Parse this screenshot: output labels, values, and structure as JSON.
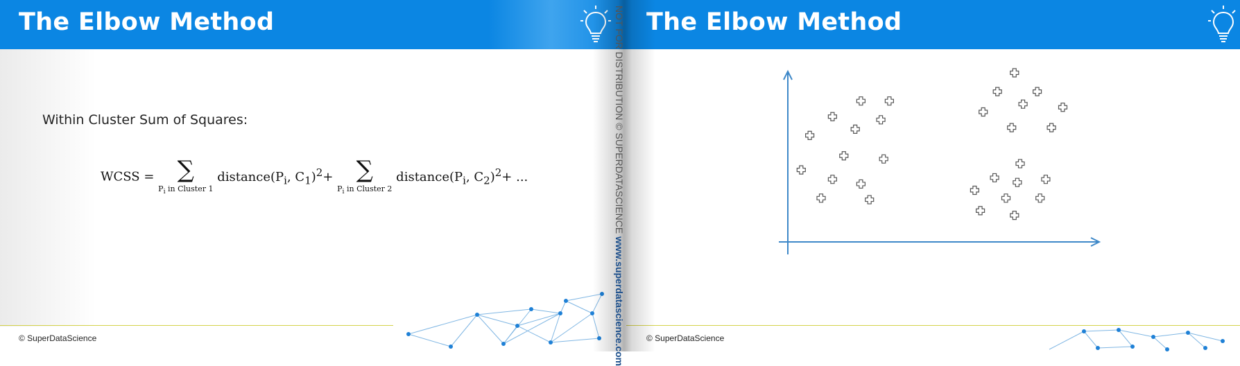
{
  "slides": [
    {
      "title": "The Elbow Method",
      "subtitle": "Within Cluster Sum of Squares:",
      "formula": {
        "lhs": "WCSS =",
        "term1": "distance(P",
        "term1_sub": "i",
        "term1_mid": ", C",
        "term1_sub2": "1",
        "term1_end": ")",
        "exp": "2",
        "plus": "+",
        "sum1_sub": "P",
        "sum1_sub_i": "i",
        "sum1_sub_rest": " in Cluster 1",
        "term2": "distance(P",
        "term2_sub": "i",
        "term2_mid": ", C",
        "term2_sub2": "2",
        "term2_end": ")",
        "sum2_sub": "P",
        "sum2_sub_i": "i",
        "sum2_sub_rest": " in Cluster 2",
        "ellipsis": "..."
      },
      "footer": "© SuperDataScience"
    },
    {
      "title": "The Elbow Method",
      "footer": "© SuperDataScience",
      "scatter": {
        "cluster1": [
          [
            0.24,
            0.82
          ],
          [
            0.34,
            0.82
          ],
          [
            0.14,
            0.72
          ],
          [
            0.31,
            0.7
          ],
          [
            0.22,
            0.64
          ],
          [
            0.06,
            0.6
          ],
          [
            0.18,
            0.47
          ],
          [
            0.32,
            0.45
          ],
          [
            0.03,
            0.38
          ],
          [
            0.14,
            0.32
          ],
          [
            0.24,
            0.29
          ],
          [
            0.1,
            0.2
          ],
          [
            0.27,
            0.19
          ]
        ],
        "cluster2": [
          [
            0.78,
            1.0
          ],
          [
            0.72,
            0.88
          ],
          [
            0.86,
            0.88
          ],
          [
            0.81,
            0.8
          ],
          [
            0.95,
            0.78
          ],
          [
            0.67,
            0.75
          ],
          [
            0.77,
            0.65
          ],
          [
            0.91,
            0.65
          ],
          [
            0.8,
            0.42
          ],
          [
            0.71,
            0.33
          ],
          [
            0.79,
            0.3
          ],
          [
            0.89,
            0.32
          ],
          [
            0.64,
            0.25
          ],
          [
            0.75,
            0.2
          ],
          [
            0.87,
            0.2
          ],
          [
            0.66,
            0.12
          ],
          [
            0.78,
            0.09
          ]
        ]
      }
    }
  ],
  "watermark": {
    "text": "NOT FOR DISTRIBUTION © SUPERDATASCIENCE",
    "url": "www.superdatascience.com"
  },
  "colors": {
    "header": "#0b86e3",
    "axis": "#3e88c8",
    "footer_line": "#d4d24a",
    "network": "#7fb6e3",
    "network_node": "#1e80d6"
  },
  "icons": {
    "bulb": "lightbulb-icon",
    "point": "plus-marker-icon"
  }
}
